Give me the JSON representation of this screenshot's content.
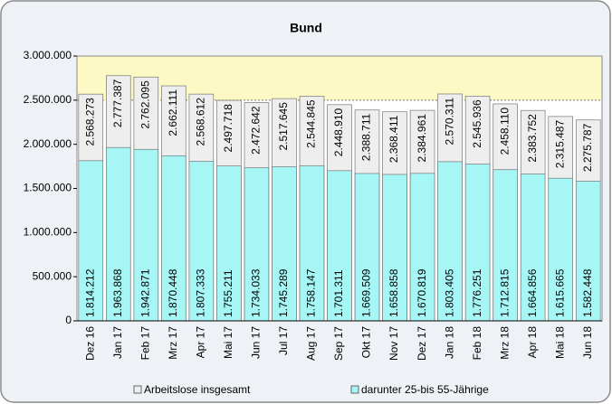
{
  "chart_data": {
    "type": "bar",
    "title": "Bund",
    "categories": [
      "Dez 16",
      "Jan 17",
      "Feb 17",
      "Mrz 17",
      "Apr 17",
      "Mai 17",
      "Jun 17",
      "Jul 17",
      "Aug 17",
      "Sep 17",
      "Okt 17",
      "Nov 17",
      "Dez 17",
      "Jan 18",
      "Feb 18",
      "Mrz 18",
      "Apr 18",
      "Mai 18",
      "Jun 18"
    ],
    "series": [
      {
        "name": "Arbeitslose insgesamt",
        "color": "#eeeeee",
        "values": [
          2568273,
          2777387,
          2762095,
          2662111,
          2568612,
          2497718,
          2472642,
          2517645,
          2544845,
          2448910,
          2388711,
          2368411,
          2384961,
          2570311,
          2545936,
          2458110,
          2383752,
          2315487,
          2275787
        ],
        "value_labels": [
          "2.568.273",
          "2.777.387",
          "2.762.095",
          "2.662.111",
          "2.568.612",
          "2.497.718",
          "2.472.642",
          "2.517.645",
          "2.544.845",
          "2.448.910",
          "2.388.711",
          "2.368.411",
          "2.384.961",
          "2.570.311",
          "2.545.936",
          "2.458.110",
          "2.383.752",
          "2.315.487",
          "2.275.787"
        ]
      },
      {
        "name": "darunter 25-bis 55-Jährige",
        "color": "#a6f6f6",
        "values": [
          1814212,
          1963868,
          1942871,
          1870448,
          1807333,
          1755211,
          1734033,
          1745289,
          1758147,
          1701311,
          1669509,
          1658858,
          1670819,
          1803405,
          1776251,
          1712815,
          1664856,
          1615665,
          1582448
        ],
        "value_labels": [
          "1.814.212",
          "1.963.868",
          "1.942.871",
          "1.870.448",
          "1.807.333",
          "1.755.211",
          "1.734.033",
          "1.745.289",
          "1.758.147",
          "1.701.311",
          "1.669.509",
          "1.658.858",
          "1.670.819",
          "1.803.405",
          "1.776.251",
          "1.712.815",
          "1.664.856",
          "1.615.665",
          "1.582.448"
        ]
      }
    ],
    "ylim": [
      0,
      3000000
    ],
    "yticks": [
      0,
      {
        "value": 500000,
        "label": "500.000"
      },
      {
        "value": 1000000,
        "label": "1.000.000"
      },
      {
        "value": 1500000,
        "label": "1.500.000"
      },
      {
        "value": 2000000,
        "label": "2.000.000"
      },
      {
        "value": 2500000,
        "label": "2.500.000"
      },
      {
        "value": 3000000,
        "label": "3.000.000"
      }
    ]
  }
}
